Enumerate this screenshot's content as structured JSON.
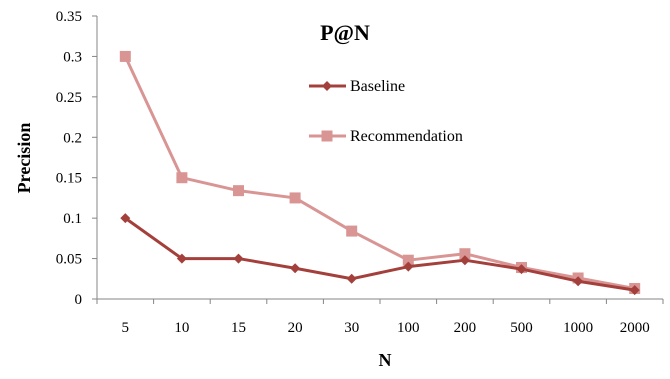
{
  "chart_data": {
    "type": "line",
    "title": "P@N",
    "xlabel": "N",
    "ylabel": "Precision",
    "categories": [
      "5",
      "10",
      "15",
      "20",
      "30",
      "100",
      "200",
      "500",
      "1000",
      "2000"
    ],
    "ylim": [
      0,
      0.35
    ],
    "yticks": [
      "0",
      "0.05",
      "0.1",
      "0.15",
      "0.2",
      "0.25",
      "0.3",
      "0.35"
    ],
    "grid": false,
    "legend_position": "top-center",
    "series": [
      {
        "name": "Baseline",
        "marker": "diamond",
        "color": "#a4403c",
        "values": [
          0.1,
          0.05,
          0.05,
          0.038,
          0.025,
          0.04,
          0.048,
          0.037,
          0.022,
          0.011
        ]
      },
      {
        "name": "Recommendation",
        "marker": "square",
        "color": "#d99594",
        "values": [
          0.3,
          0.15,
          0.134,
          0.125,
          0.084,
          0.048,
          0.056,
          0.039,
          0.026,
          0.013
        ]
      }
    ]
  }
}
